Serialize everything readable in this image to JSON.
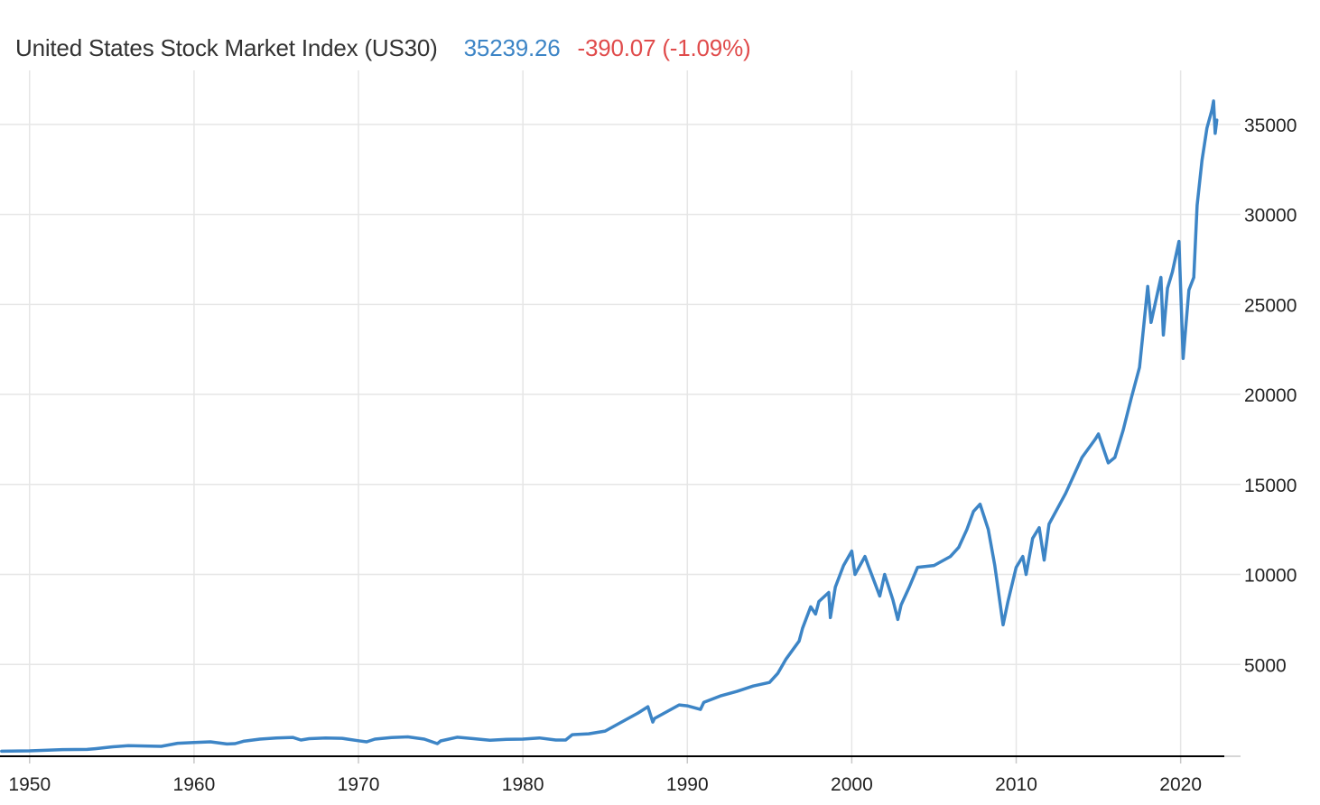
{
  "header": {
    "title": "United States Stock Market Index (US30)",
    "price": "35239.26",
    "change": "-390.07 (-1.09%)"
  },
  "colors": {
    "line": "#3d85c6",
    "price": "#3d85c6",
    "change": "#e04b4b",
    "grid": "#e6e6e6",
    "axis": "#000000"
  },
  "chart_data": {
    "type": "line",
    "title": "United States Stock Market Index (US30)",
    "xlabel": "",
    "ylabel": "",
    "xlim": [
      1948.2,
      2022.6
    ],
    "ylim": [
      -100,
      38000
    ],
    "x_ticks": [
      1950,
      1960,
      1970,
      1980,
      1990,
      2000,
      2010,
      2020
    ],
    "y_ticks": [
      5000,
      10000,
      15000,
      20000,
      25000,
      30000,
      35000
    ],
    "y_axis_position": "right",
    "grid": true,
    "legend": "none",
    "series": [
      {
        "name": "US30",
        "points": [
          [
            1948.3,
            180
          ],
          [
            1950,
            200
          ],
          [
            1952,
            270
          ],
          [
            1953.5,
            280
          ],
          [
            1954,
            320
          ],
          [
            1955,
            420
          ],
          [
            1956,
            490
          ],
          [
            1957,
            470
          ],
          [
            1958,
            450
          ],
          [
            1959,
            620
          ],
          [
            1960,
            660
          ],
          [
            1961,
            700
          ],
          [
            1962,
            580
          ],
          [
            1962.5,
            600
          ],
          [
            1963,
            730
          ],
          [
            1964,
            850
          ],
          [
            1965,
            920
          ],
          [
            1966,
            950
          ],
          [
            1966.5,
            800
          ],
          [
            1967,
            880
          ],
          [
            1968,
            920
          ],
          [
            1969,
            900
          ],
          [
            1970,
            760
          ],
          [
            1970.5,
            700
          ],
          [
            1971,
            850
          ],
          [
            1972,
            940
          ],
          [
            1973,
            980
          ],
          [
            1974,
            850
          ],
          [
            1974.8,
            600
          ],
          [
            1975,
            750
          ],
          [
            1976,
            960
          ],
          [
            1977,
            880
          ],
          [
            1978,
            790
          ],
          [
            1979,
            840
          ],
          [
            1980,
            850
          ],
          [
            1981,
            920
          ],
          [
            1982,
            800
          ],
          [
            1982.6,
            800
          ],
          [
            1983,
            1100
          ],
          [
            1984,
            1150
          ],
          [
            1985,
            1300
          ],
          [
            1986,
            1800
          ],
          [
            1987,
            2300
          ],
          [
            1987.6,
            2650
          ],
          [
            1987.9,
            1800
          ],
          [
            1988,
            2000
          ],
          [
            1989,
            2500
          ],
          [
            1989.5,
            2750
          ],
          [
            1990,
            2700
          ],
          [
            1990.8,
            2500
          ],
          [
            1991,
            2900
          ],
          [
            1992,
            3250
          ],
          [
            1993,
            3500
          ],
          [
            1994,
            3800
          ],
          [
            1995,
            4000
          ],
          [
            1995.5,
            4500
          ],
          [
            1996,
            5300
          ],
          [
            1996.8,
            6300
          ],
          [
            1997,
            7000
          ],
          [
            1997.5,
            8200
          ],
          [
            1997.8,
            7800
          ],
          [
            1998,
            8500
          ],
          [
            1998.6,
            9000
          ],
          [
            1998.7,
            7600
          ],
          [
            1999,
            9300
          ],
          [
            1999.5,
            10500
          ],
          [
            2000,
            11300
          ],
          [
            2000.2,
            10000
          ],
          [
            2000.8,
            11000
          ],
          [
            2001,
            10500
          ],
          [
            2001.7,
            8800
          ],
          [
            2002,
            10000
          ],
          [
            2002.5,
            8600
          ],
          [
            2002.8,
            7500
          ],
          [
            2003,
            8300
          ],
          [
            2003.5,
            9300
          ],
          [
            2004,
            10400
          ],
          [
            2005,
            10500
          ],
          [
            2006,
            11000
          ],
          [
            2006.5,
            11500
          ],
          [
            2007,
            12500
          ],
          [
            2007.4,
            13500
          ],
          [
            2007.8,
            13900
          ],
          [
            2008.3,
            12500
          ],
          [
            2008.7,
            10500
          ],
          [
            2009.2,
            7200
          ],
          [
            2009.5,
            8500
          ],
          [
            2010,
            10400
          ],
          [
            2010.4,
            11000
          ],
          [
            2010.6,
            10000
          ],
          [
            2011,
            12000
          ],
          [
            2011.4,
            12600
          ],
          [
            2011.7,
            10800
          ],
          [
            2012,
            12800
          ],
          [
            2013,
            14500
          ],
          [
            2014,
            16500
          ],
          [
            2014.8,
            17500
          ],
          [
            2015,
            17800
          ],
          [
            2015.6,
            16200
          ],
          [
            2016,
            16500
          ],
          [
            2016.5,
            18000
          ],
          [
            2017,
            19800
          ],
          [
            2017.5,
            21500
          ],
          [
            2018,
            26000
          ],
          [
            2018.2,
            24000
          ],
          [
            2018.8,
            26500
          ],
          [
            2018.95,
            23300
          ],
          [
            2019.2,
            25900
          ],
          [
            2019.5,
            26800
          ],
          [
            2019.9,
            28500
          ],
          [
            2020.15,
            22000
          ],
          [
            2020.5,
            25800
          ],
          [
            2020.8,
            26500
          ],
          [
            2021,
            30500
          ],
          [
            2021.3,
            33000
          ],
          [
            2021.6,
            34800
          ],
          [
            2021.9,
            35800
          ],
          [
            2022.0,
            36300
          ],
          [
            2022.1,
            34500
          ],
          [
            2022.2,
            35239
          ]
        ]
      }
    ]
  }
}
